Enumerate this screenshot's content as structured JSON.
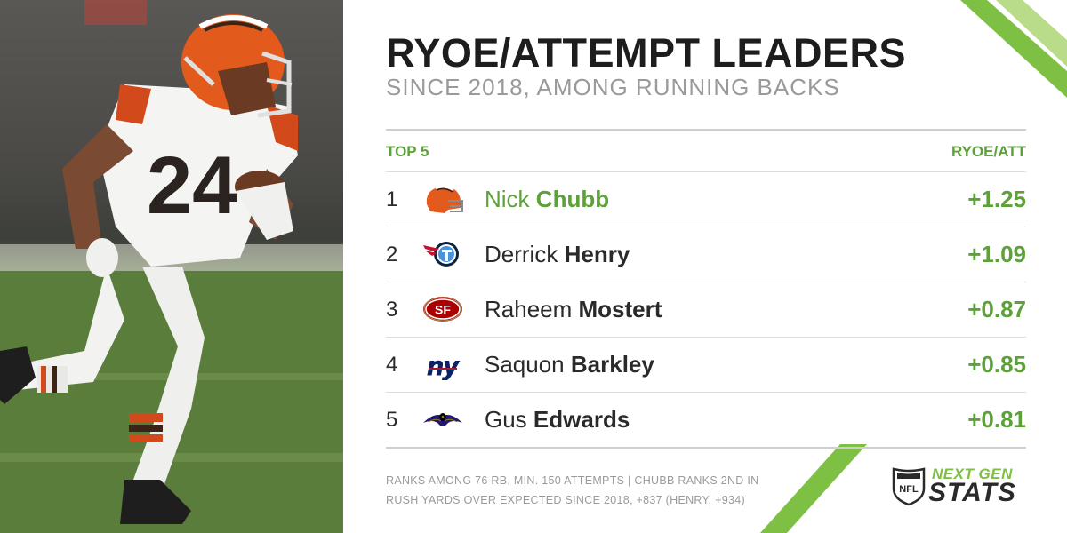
{
  "title": "RYOE/ATTEMPT LEADERS",
  "subtitle": "SINCE 2018, AMONG RUNNING BACKS",
  "table": {
    "left_header": "TOP 5",
    "right_header": "RYOE/ATT",
    "rows": [
      {
        "rank": "1",
        "first": "Nick",
        "last": "Chubb",
        "value": "+1.25",
        "team_icon": "browns-helmet-icon"
      },
      {
        "rank": "2",
        "first": "Derrick",
        "last": "Henry",
        "value": "+1.09",
        "team_icon": "titans-logo-icon"
      },
      {
        "rank": "3",
        "first": "Raheem",
        "last": "Mostert",
        "value": "+0.87",
        "team_icon": "49ers-logo-icon"
      },
      {
        "rank": "4",
        "first": "Saquon",
        "last": "Barkley",
        "value": "+0.85",
        "team_icon": "giants-logo-icon"
      },
      {
        "rank": "5",
        "first": "Gus",
        "last": "Edwards",
        "value": "+0.81",
        "team_icon": "ravens-logo-icon"
      }
    ]
  },
  "footnote": {
    "line1": "RANKS AMONG 76 RB, MIN. 150 ATTEMPTS | CHUBB RANKS 2ND IN",
    "line2": "RUSH YARDS OVER EXPECTED SINCE 2018, +837 (HENRY, +934)"
  },
  "brand": {
    "shield_text": "NFL",
    "top": "NEXT GEN",
    "bottom": "STATS"
  },
  "player_photo": {
    "jersey_number": "24"
  },
  "colors": {
    "accent_green": "#5da13a",
    "bright_green": "#7ec043",
    "text_dark": "#1d1d1d",
    "text_gray": "#9a9a9a"
  }
}
